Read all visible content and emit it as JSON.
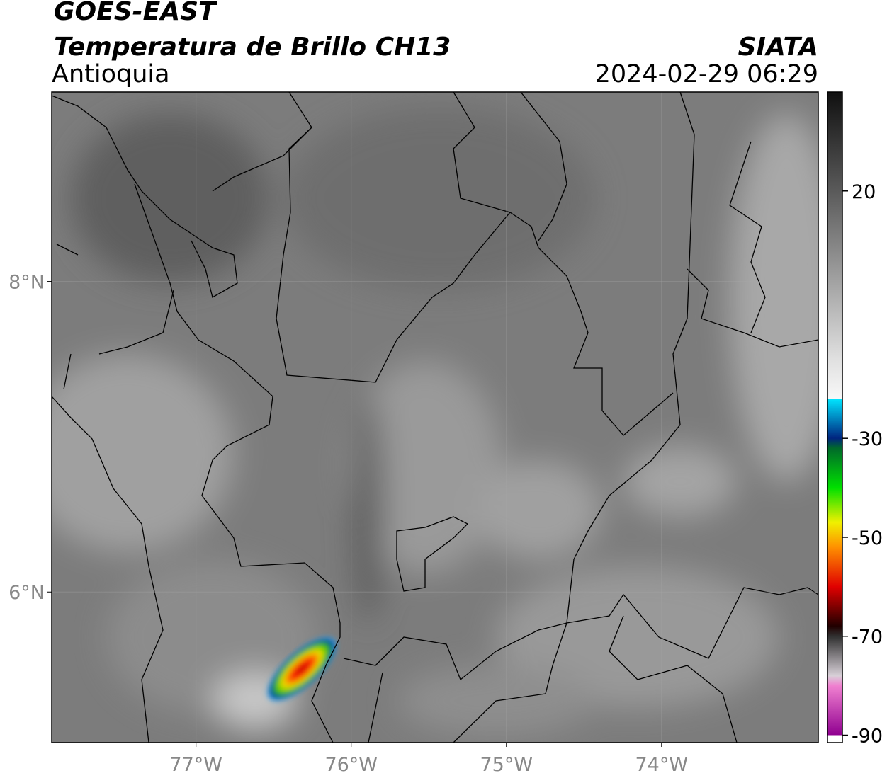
{
  "header": {
    "title": "GOES-EAST",
    "subtitle": "Temperatura de Brillo CH13",
    "region": "Antioquia",
    "source": "SIATA",
    "datetime": "2024-02-29 06:29"
  },
  "map": {
    "lon_range": [
      -77.93,
      -72.99
    ],
    "lat_range": [
      5.03,
      9.22
    ],
    "lat_ticks": [
      {
        "value": 8,
        "label": "8°N"
      },
      {
        "value": 6,
        "label": "6°N"
      }
    ],
    "lon_ticks": [
      {
        "value": -77,
        "label": "77°W"
      },
      {
        "value": -76,
        "label": "76°W"
      },
      {
        "value": -75,
        "label": "75°W"
      },
      {
        "value": -74,
        "label": "74°W"
      }
    ],
    "grid": true
  },
  "colorbar": {
    "range": [
      -91.5,
      40
    ],
    "ticks": [
      20,
      -30,
      -50,
      -70,
      -90
    ],
    "colors": [
      {
        "value": 40,
        "color": "#101010"
      },
      {
        "value": 20,
        "color": "#5a5a5a"
      },
      {
        "value": -14,
        "color": "#e0e0e0"
      },
      {
        "value": -22,
        "color": "#f8f8f8"
      },
      {
        "value": -22,
        "color": "#00e5ff"
      },
      {
        "value": -30,
        "color": "#00247f"
      },
      {
        "value": -32,
        "color": "#006a2a"
      },
      {
        "value": -40,
        "color": "#00e000"
      },
      {
        "value": -47,
        "color": "#f0f000"
      },
      {
        "value": -52,
        "color": "#ff9000"
      },
      {
        "value": -60,
        "color": "#e00000"
      },
      {
        "value": -68,
        "color": "#200000"
      },
      {
        "value": -70,
        "color": "#303030"
      },
      {
        "value": -78,
        "color": "#d8d0d8"
      },
      {
        "value": -80,
        "color": "#f080d0"
      },
      {
        "value": -90,
        "color": "#900090"
      },
      {
        "value": -90,
        "color": "#ffffff"
      }
    ]
  }
}
